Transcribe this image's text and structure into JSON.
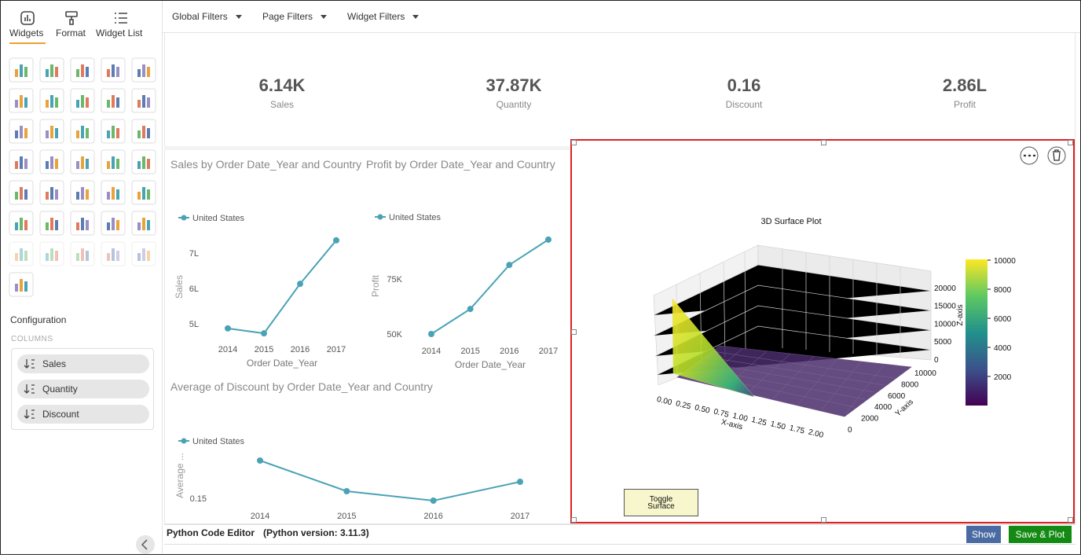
{
  "sidebar": {
    "tabs": [
      "Widgets",
      "Format",
      "Widget List"
    ],
    "configuration": {
      "title": "Configuration",
      "section": "COLUMNS",
      "columns": [
        "Sales",
        "Quantity",
        "Discount"
      ]
    }
  },
  "filters": [
    "Global Filters",
    "Page Filters",
    "Widget Filters"
  ],
  "kpis": [
    {
      "value": "6.14K",
      "label": "Sales"
    },
    {
      "value": "37.87K",
      "label": "Quantity"
    },
    {
      "value": "0.16",
      "label": "Discount"
    },
    {
      "value": "2.86L",
      "label": "Profit"
    }
  ],
  "charts": [
    {
      "type": "line",
      "title": "Sales by Order Date_Year and Country",
      "x_label": "Order Date_Year",
      "y_label": "Sales",
      "categories": [
        "2014",
        "2015",
        "2016",
        "2017"
      ],
      "series": [
        {
          "name": "United States",
          "color": "#4aa3b5",
          "values": [
            4.87,
            4.73,
            6.13,
            7.36
          ]
        }
      ],
      "ylim": [
        4.5,
        7.5
      ],
      "yticks": [
        {
          "value": 5,
          "label": "5L"
        },
        {
          "value": 6,
          "label": "6L"
        },
        {
          "value": 7,
          "label": "7L"
        }
      ]
    },
    {
      "type": "line",
      "title": "Profit by Order Date_Year and Country",
      "x_label": "Order Date_Year",
      "y_label": "Profit",
      "categories": [
        "2014",
        "2015",
        "2016",
        "2017"
      ],
      "series": [
        {
          "name": "United States",
          "color": "#4aa3b5",
          "values": [
            50,
            61.4,
            81.4,
            92.9
          ]
        }
      ],
      "ylim": [
        45,
        95
      ],
      "yticks": [
        {
          "value": 50,
          "label": "50K"
        },
        {
          "value": 75,
          "label": "75K"
        }
      ]
    },
    {
      "type": "line",
      "title": "Average of Discount by Order Date_Year and Country",
      "y_label": "Average ...",
      "categories": [
        "2014",
        "2015",
        "2016",
        "2017"
      ],
      "series": [
        {
          "name": "United States",
          "color": "#4aa3b5",
          "values": [
            0.174,
            0.1545,
            0.1485,
            0.1605
          ]
        }
      ],
      "ylim": [
        0.145,
        0.18
      ],
      "yticks": [
        0.15
      ]
    }
  ],
  "surface_plot": {
    "title": "3D Surface Plot",
    "x_label": "X-axis",
    "y_label": "Y-axis",
    "z_label": "Z-axis",
    "xticks": [
      "0.00",
      "0.25",
      "0.50",
      "0.75",
      "1.00",
      "1.25",
      "1.50",
      "1.75",
      "2.00"
    ],
    "yticks": [
      "0",
      "2000",
      "4000",
      "6000",
      "8000",
      "10000"
    ],
    "zticks": [
      "0",
      "5000",
      "10000",
      "15000",
      "20000"
    ],
    "colorbar_ticks": [
      "2000",
      "4000",
      "6000",
      "8000",
      "10000"
    ],
    "button": "Toggle Surface"
  },
  "editor": {
    "title": "Python Code Editor",
    "version": "(Python version: 3.11.3)",
    "buttons": [
      "Show",
      "Save & Plot"
    ]
  }
}
